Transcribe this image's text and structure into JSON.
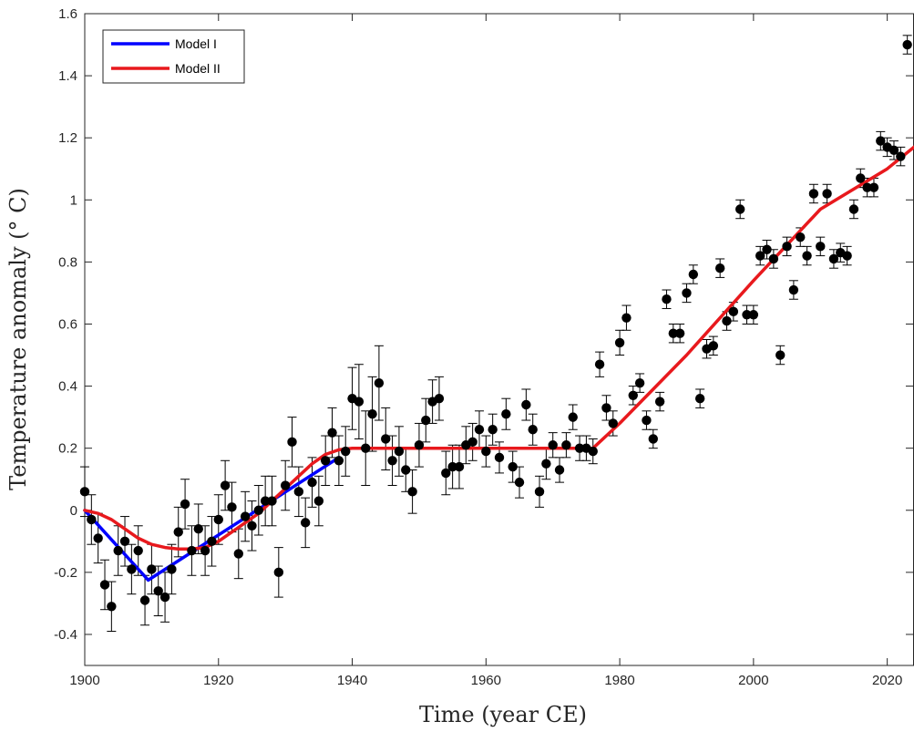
{
  "chart_data": {
    "type": "scatter",
    "title": "",
    "xlabel": "Time (year CE)",
    "ylabel": "Temperature anomaly (° C)",
    "xlim": [
      1900,
      2024
    ],
    "ylim": [
      -0.5,
      1.6
    ],
    "xticks": [
      1900,
      1920,
      1940,
      1960,
      1980,
      2000,
      2020
    ],
    "yticks": [
      -0.4,
      -0.2,
      0,
      0.2,
      0.4,
      0.6,
      0.8,
      1,
      1.2,
      1.4,
      1.6
    ],
    "ytick_labels": [
      "-0.4",
      "-0.2",
      "0",
      "0.2",
      "0.4",
      "0.6",
      "0.8",
      "1",
      "1.2",
      "1.4",
      "1.6"
    ],
    "grid": false,
    "legend_position": "top-left",
    "colors": {
      "observations": "#000000",
      "model1": "#0000ff",
      "model2": "#e8191d"
    },
    "observations": {
      "x": [
        1900,
        1901,
        1902,
        1903,
        1904,
        1905,
        1906,
        1907,
        1908,
        1909,
        1910,
        1911,
        1912,
        1913,
        1914,
        1915,
        1916,
        1917,
        1918,
        1919,
        1920,
        1921,
        1922,
        1923,
        1924,
        1925,
        1926,
        1927,
        1928,
        1929,
        1930,
        1931,
        1932,
        1933,
        1934,
        1935,
        1936,
        1937,
        1938,
        1939,
        1940,
        1941,
        1942,
        1943,
        1944,
        1945,
        1946,
        1947,
        1948,
        1949,
        1950,
        1951,
        1952,
        1953,
        1954,
        1955,
        1956,
        1957,
        1958,
        1959,
        1960,
        1961,
        1962,
        1963,
        1964,
        1965,
        1966,
        1967,
        1968,
        1969,
        1970,
        1971,
        1972,
        1973,
        1974,
        1975,
        1976,
        1977,
        1978,
        1979,
        1980,
        1981,
        1982,
        1983,
        1984,
        1985,
        1986,
        1987,
        1988,
        1989,
        1990,
        1991,
        1992,
        1993,
        1994,
        1995,
        1996,
        1997,
        1998,
        1999,
        2000,
        2001,
        2002,
        2003,
        2004,
        2005,
        2006,
        2007,
        2008,
        2009,
        2010,
        2011,
        2012,
        2013,
        2014,
        2015,
        2016,
        2017,
        2018,
        2019,
        2020,
        2021,
        2022,
        2023
      ],
      "y": [
        0.06,
        -0.03,
        -0.09,
        -0.24,
        -0.31,
        -0.13,
        -0.1,
        -0.19,
        -0.13,
        -0.29,
        -0.19,
        -0.26,
        -0.28,
        -0.19,
        -0.07,
        0.02,
        -0.13,
        -0.06,
        -0.13,
        -0.1,
        -0.03,
        0.08,
        0.01,
        -0.14,
        -0.02,
        -0.05,
        0.0,
        0.03,
        0.03,
        -0.2,
        0.08,
        0.22,
        0.06,
        -0.04,
        0.09,
        0.03,
        0.16,
        0.25,
        0.16,
        0.19,
        0.36,
        0.35,
        0.2,
        0.31,
        0.41,
        0.23,
        0.16,
        0.19,
        0.13,
        0.06,
        0.21,
        0.29,
        0.35,
        0.36,
        0.12,
        0.14,
        0.14,
        0.21,
        0.22,
        0.26,
        0.19,
        0.26,
        0.17,
        0.31,
        0.14,
        0.09,
        0.34,
        0.26,
        0.06,
        0.15,
        0.21,
        0.13,
        0.21,
        0.3,
        0.2,
        0.2,
        0.19,
        0.47,
        0.33,
        0.28,
        0.54,
        0.62,
        0.37,
        0.41,
        0.29,
        0.23,
        0.35,
        0.68,
        0.57,
        0.57,
        0.7,
        0.76,
        0.36,
        0.52,
        0.53,
        0.78,
        0.61,
        0.64,
        0.97,
        0.63,
        0.63,
        0.82,
        0.84,
        0.81,
        0.5,
        0.85,
        0.71,
        0.88,
        0.82,
        1.02,
        0.85,
        1.02,
        0.81,
        0.83,
        0.82,
        0.97,
        1.07,
        1.04,
        1.04,
        1.19,
        1.17,
        1.16,
        1.14,
        1.5
      ],
      "error": [
        0.08,
        0.08,
        0.08,
        0.08,
        0.08,
        0.08,
        0.08,
        0.08,
        0.08,
        0.08,
        0.08,
        0.08,
        0.08,
        0.08,
        0.08,
        0.08,
        0.08,
        0.08,
        0.08,
        0.08,
        0.08,
        0.08,
        0.08,
        0.08,
        0.08,
        0.08,
        0.08,
        0.08,
        0.08,
        0.08,
        0.08,
        0.08,
        0.08,
        0.08,
        0.08,
        0.08,
        0.08,
        0.08,
        0.08,
        0.08,
        0.1,
        0.12,
        0.12,
        0.12,
        0.12,
        0.1,
        0.08,
        0.08,
        0.07,
        0.07,
        0.07,
        0.07,
        0.07,
        0.07,
        0.07,
        0.07,
        0.07,
        0.06,
        0.06,
        0.06,
        0.05,
        0.05,
        0.05,
        0.05,
        0.05,
        0.05,
        0.05,
        0.05,
        0.05,
        0.05,
        0.04,
        0.04,
        0.04,
        0.04,
        0.04,
        0.04,
        0.04,
        0.04,
        0.04,
        0.04,
        0.04,
        0.04,
        0.03,
        0.03,
        0.03,
        0.03,
        0.03,
        0.03,
        0.03,
        0.03,
        0.03,
        0.03,
        0.03,
        0.03,
        0.03,
        0.03,
        0.03,
        0.03,
        0.03,
        0.03,
        0.03,
        0.03,
        0.03,
        0.03,
        0.03,
        0.03,
        0.03,
        0.03,
        0.03,
        0.03,
        0.03,
        0.03,
        0.03,
        0.03,
        0.03,
        0.03,
        0.03,
        0.03,
        0.03,
        0.03,
        0.03,
        0.03,
        0.03,
        0.03
      ]
    },
    "series": [
      {
        "name": "Model I",
        "x": [
          1900,
          1909.5,
          1938
        ],
        "y": [
          0.0,
          -0.225,
          0.17
        ]
      },
      {
        "name": "Model II",
        "x": [
          1900,
          1902,
          1904,
          1906,
          1908,
          1910,
          1912,
          1914,
          1916,
          1918,
          1920,
          1922,
          1924,
          1926,
          1928,
          1930,
          1932,
          1934,
          1936,
          1938,
          1940,
          1944,
          1950,
          1960,
          1970,
          1976,
          1980,
          1990,
          2000,
          2010,
          2020,
          2024
        ],
        "y": [
          0.0,
          -0.01,
          -0.03,
          -0.06,
          -0.09,
          -0.11,
          -0.12,
          -0.125,
          -0.125,
          -0.12,
          -0.1,
          -0.07,
          -0.04,
          -0.01,
          0.03,
          0.07,
          0.11,
          0.15,
          0.18,
          0.195,
          0.2,
          0.2,
          0.2,
          0.2,
          0.2,
          0.2,
          0.28,
          0.5,
          0.74,
          0.97,
          1.1,
          1.17
        ]
      }
    ]
  }
}
